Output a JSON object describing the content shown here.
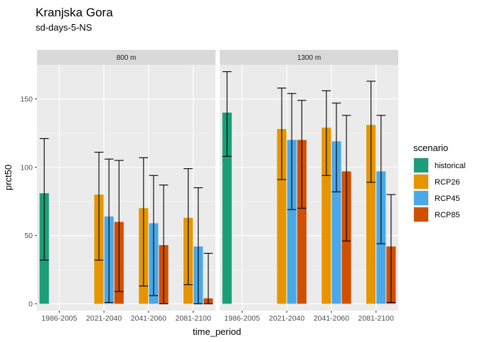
{
  "chart_data": {
    "type": "bar",
    "title": "Kranjska Gora",
    "subtitle": "sd-days-5-NS",
    "xlabel": "time_period",
    "ylabel": "prct50",
    "ylim": [
      -5,
      175
    ],
    "yticks": [
      0,
      50,
      100,
      150
    ],
    "categories": [
      "1986-2005",
      "2021-2040",
      "2041-2060",
      "2081-2100"
    ],
    "legend": {
      "title": "scenario",
      "position": "right",
      "items": [
        {
          "name": "historical",
          "color": "#1b9e77"
        },
        {
          "name": "RCP26",
          "color": "#e69500"
        },
        {
          "name": "RCP45",
          "color": "#4aa8e8"
        },
        {
          "name": "RCP85",
          "color": "#d05000"
        }
      ]
    },
    "facets": [
      {
        "label": "800 m",
        "series": [
          {
            "name": "historical",
            "values": [
              81,
              null,
              null,
              null
            ],
            "lower": [
              32,
              null,
              null,
              null
            ],
            "upper": [
              121,
              null,
              null,
              null
            ]
          },
          {
            "name": "RCP26",
            "values": [
              null,
              80,
              70,
              63
            ],
            "lower": [
              null,
              32,
              13,
              14
            ],
            "upper": [
              null,
              111,
              107,
              99
            ]
          },
          {
            "name": "RCP45",
            "values": [
              null,
              64,
              59,
              42
            ],
            "lower": [
              null,
              1,
              6,
              0
            ],
            "upper": [
              null,
              106,
              94,
              85
            ]
          },
          {
            "name": "RCP85",
            "values": [
              null,
              60,
              43,
              4
            ],
            "lower": [
              null,
              9,
              0,
              0
            ],
            "upper": [
              null,
              105,
              87,
              37
            ]
          }
        ]
      },
      {
        "label": "1300 m",
        "series": [
          {
            "name": "historical",
            "values": [
              140,
              null,
              null,
              null
            ],
            "lower": [
              108,
              null,
              null,
              null
            ],
            "upper": [
              170,
              null,
              null,
              null
            ]
          },
          {
            "name": "RCP26",
            "values": [
              null,
              128,
              129,
              131
            ],
            "lower": [
              null,
              91,
              94,
              89
            ],
            "upper": [
              null,
              158,
              156,
              163
            ]
          },
          {
            "name": "RCP45",
            "values": [
              null,
              120,
              119,
              97
            ],
            "lower": [
              null,
              69,
              82,
              44
            ],
            "upper": [
              null,
              154,
              147,
              138
            ]
          },
          {
            "name": "RCP85",
            "values": [
              null,
              120,
              97,
              42
            ],
            "lower": [
              null,
              70,
              46,
              1
            ],
            "upper": [
              null,
              149,
              138,
              80
            ]
          }
        ]
      }
    ],
    "grid": true,
    "background": "#ebebeb",
    "strip_background": "#d9d9d9"
  }
}
